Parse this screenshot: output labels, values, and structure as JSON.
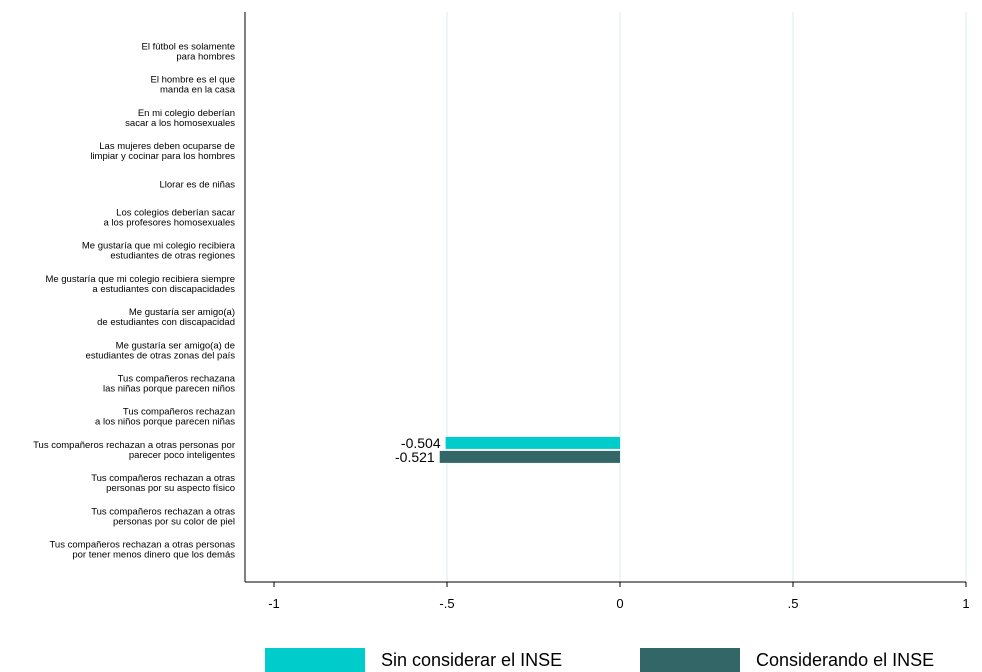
{
  "chart_data": {
    "type": "bar",
    "orientation": "horizontal",
    "categories": [
      "El fútbol es solamente\npara hombres",
      "El hombre es el que\nmanda en la casa",
      "En mi colegio deberían\nsacar a los homosexuales",
      "Las mujeres deben ocuparse de\nlimpiar y cocinar para los hombres",
      "Llorar es de niñas",
      "Los colegios deberían sacar\na los profesores homosexuales",
      "Me gustaría que mi colegio recibiera\nestudiantes de otras regiones",
      "Me gustaría que mi colegio recibiera siempre\na estudiantes con discapacidades",
      "Me gustaría ser amigo(a)\nde estudiantes con discapacidad",
      "Me gustaría ser amigo(a) de\nestudiantes de otras zonas del país",
      "Tus compañeros rechazana\nlas niñas porque parecen niños",
      "Tus compañeros rechazan\na los niños porque parecen niñas",
      "Tus compañeros rechazan a otras personas por\nparecer poco inteligentes",
      "Tus compañeros rechazan a otras\npersonas por su aspecto físico",
      "Tus compañeros rechazan a otras\npersonas por su color de piel",
      "Tus compañeros rechazan a otras personas\npor tener menos dinero que los demás"
    ],
    "series": [
      {
        "name": "Sin considerar el INSE",
        "color": "#00cccc",
        "values": [
          null,
          null,
          null,
          null,
          null,
          null,
          null,
          null,
          null,
          null,
          null,
          null,
          -0.504,
          null,
          null,
          null
        ],
        "data_labels": [
          null,
          null,
          null,
          null,
          null,
          null,
          null,
          null,
          null,
          null,
          null,
          null,
          "-0.504",
          null,
          null,
          null
        ]
      },
      {
        "name": "Considerando el INSE",
        "color": "#336666",
        "values": [
          null,
          null,
          null,
          null,
          null,
          null,
          null,
          null,
          null,
          null,
          null,
          null,
          -0.521,
          null,
          null,
          null
        ],
        "data_labels": [
          null,
          null,
          null,
          null,
          null,
          null,
          null,
          null,
          null,
          null,
          null,
          null,
          "-0.521",
          null,
          null,
          null
        ]
      }
    ],
    "xlim": [
      -1,
      1
    ],
    "xticks": [
      -1,
      -0.5,
      0,
      0.5,
      1
    ],
    "xtick_labels": [
      "-1",
      "-.5",
      "0",
      ".5",
      "1"
    ],
    "grid": true,
    "legend_position": "bottom"
  },
  "legend": {
    "items": [
      {
        "label": "Sin considerar el INSE",
        "color": "#00cccc"
      },
      {
        "label": "Considerando el INSE",
        "color": "#336666"
      }
    ]
  }
}
